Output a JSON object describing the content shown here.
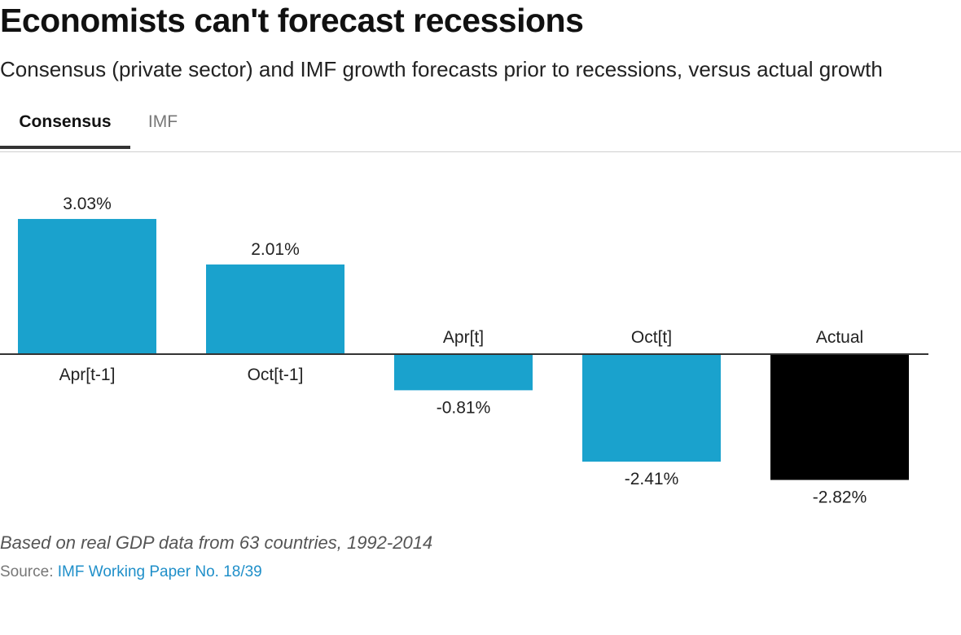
{
  "header": {
    "title": "Economists can't forecast recessions",
    "subtitle": "Consensus (private sector) and IMF growth forecasts prior to recessions, versus actual growth"
  },
  "tabs": [
    {
      "label": "Consensus",
      "active": true
    },
    {
      "label": "IMF",
      "active": false
    }
  ],
  "colors": {
    "forecast": "#1aa2cd",
    "actual": "#000000",
    "baseline": "#333333"
  },
  "chart_data": {
    "type": "bar",
    "title": "",
    "xlabel": "",
    "ylabel": "",
    "categories": [
      "Apr[t-1]",
      "Oct[t-1]",
      "Apr[t]",
      "Oct[t]",
      "Actual"
    ],
    "values": [
      3.03,
      2.01,
      -0.81,
      -2.41,
      -2.82
    ],
    "value_labels": [
      "3.03%",
      "2.01%",
      "-0.81%",
      "-2.41%",
      "-2.82%"
    ],
    "bar_colors": [
      "forecast",
      "forecast",
      "forecast",
      "forecast",
      "actual"
    ],
    "ylim": [
      -2.82,
      3.03
    ],
    "grid": false,
    "legend": "none"
  },
  "footer": {
    "note": "Based on real GDP data from 63 countries, 1992-2014",
    "source_label": "Source:",
    "source_link": "IMF Working Paper No. 18/39"
  }
}
